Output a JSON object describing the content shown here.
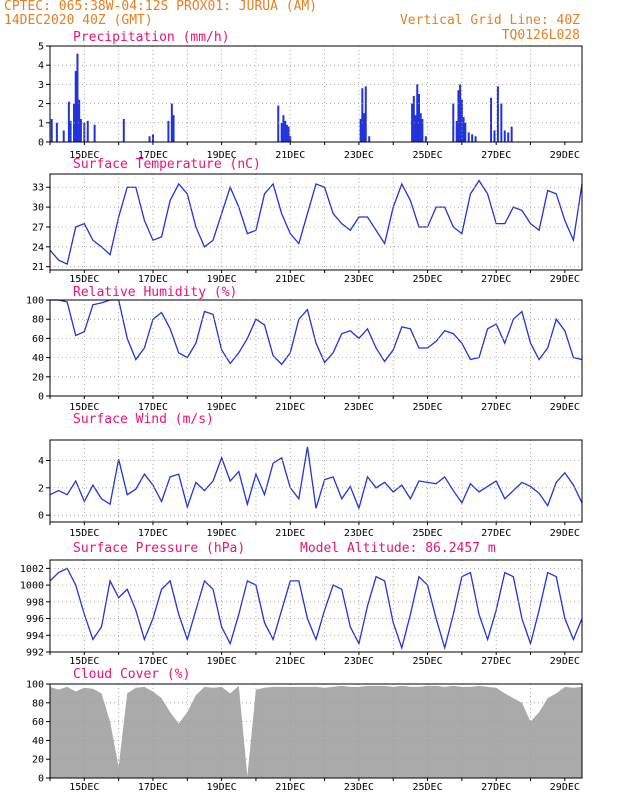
{
  "header": {
    "line1": "CPTEC:  065:38W-04:12S  PROX01: JURUA (AM)",
    "line2_left": "14DEC2020 40Z (GMT)",
    "line2_right": "Vertical Grid Line: 40Z",
    "line3_right": "TQ0126L028"
  },
  "colors": {
    "line": "#2233dd",
    "bars": "#2233dd",
    "cloud": "#aaaaaa",
    "title": "#ee1177",
    "header": "#e67e22"
  },
  "x_dates": [
    "15DEC",
    "17DEC",
    "19DEC",
    "21DEC",
    "23DEC",
    "25DEC",
    "27DEC",
    "29DEC"
  ],
  "chart_data": [
    {
      "type": "bar",
      "title": "Precipitation (mm/h)",
      "xlim": [
        0,
        15.5
      ],
      "ylim": [
        0,
        5
      ],
      "yticks": [
        0,
        1,
        2,
        3,
        4,
        5
      ],
      "x": [
        0.05,
        0.2,
        0.4,
        0.55,
        0.6,
        0.7,
        0.75,
        0.8,
        0.85,
        0.9,
        1.0,
        1.1,
        1.3,
        2.15,
        2.9,
        3.0,
        3.45,
        3.55,
        3.6,
        6.65,
        6.75,
        6.8,
        6.85,
        6.9,
        6.95,
        7.0,
        9.05,
        9.1,
        9.15,
        9.2,
        9.3,
        10.55,
        10.6,
        10.65,
        10.7,
        10.75,
        10.8,
        10.85,
        10.95,
        11.75,
        11.85,
        11.9,
        11.95,
        12.0,
        12.05,
        12.1,
        12.2,
        12.3,
        12.4,
        12.85,
        12.95,
        13.05,
        13.15,
        13.25,
        13.35,
        13.45
      ],
      "values": [
        1.2,
        1.0,
        0.6,
        2.1,
        1.1,
        2.0,
        3.7,
        4.6,
        2.2,
        1.2,
        1.0,
        1.1,
        0.9,
        1.2,
        0.3,
        0.4,
        1.1,
        2.0,
        1.4,
        1.9,
        1.0,
        1.4,
        1.1,
        0.9,
        0.8,
        0.3,
        1.2,
        2.8,
        1.5,
        2.9,
        0.3,
        2.0,
        2.4,
        1.4,
        3.0,
        2.5,
        1.5,
        1.2,
        0.3,
        2.0,
        1.1,
        2.7,
        3.0,
        2.2,
        1.3,
        1.0,
        0.5,
        0.4,
        0.3,
        2.3,
        0.6,
        2.9,
        2.0,
        0.6,
        0.5,
        0.8
      ]
    },
    {
      "type": "line",
      "title": "Surface Temperature (nC)",
      "xlim": [
        0,
        15.5
      ],
      "ylim": [
        20.5,
        35
      ],
      "yticks": [
        21,
        24,
        27,
        30,
        33
      ],
      "x": [
        0,
        0.25,
        0.5,
        0.75,
        1,
        1.25,
        1.5,
        1.75,
        2,
        2.25,
        2.5,
        2.75,
        3,
        3.25,
        3.5,
        3.75,
        4,
        4.25,
        4.5,
        4.75,
        5,
        5.25,
        5.5,
        5.75,
        6,
        6.25,
        6.5,
        6.75,
        7,
        7.25,
        7.5,
        7.75,
        8,
        8.25,
        8.5,
        8.75,
        9,
        9.25,
        9.5,
        9.75,
        10,
        10.25,
        10.5,
        10.75,
        11,
        11.25,
        11.5,
        11.75,
        12,
        12.25,
        12.5,
        12.75,
        13,
        13.25,
        13.5,
        13.75,
        14,
        14.25,
        14.5,
        14.75,
        15,
        15.25,
        15.5
      ],
      "values": [
        23.5,
        22,
        21.4,
        27,
        27.5,
        25,
        24,
        22.8,
        28.5,
        33,
        33,
        28,
        25,
        25.5,
        31,
        33.5,
        32,
        27,
        24,
        25,
        29,
        33,
        30,
        26,
        26.5,
        32,
        33.5,
        29,
        26,
        24.5,
        29,
        33.5,
        33,
        29,
        27.5,
        26.5,
        28.5,
        28.5,
        26.5,
        24.5,
        30,
        33.5,
        31,
        27,
        27,
        30,
        30,
        27,
        26,
        32,
        34,
        32,
        27.5,
        27.5,
        30,
        29.5,
        27.5,
        26.5,
        32.5,
        32,
        28,
        25,
        33.5
      ]
    },
    {
      "type": "line",
      "title": "Relative Humidity (%)",
      "xlim": [
        0,
        15.5
      ],
      "ylim": [
        0,
        100
      ],
      "yticks": [
        0,
        20,
        40,
        60,
        80,
        100
      ],
      "x": [
        0,
        0.25,
        0.5,
        0.75,
        1,
        1.25,
        1.5,
        1.75,
        2,
        2.25,
        2.5,
        2.75,
        3,
        3.25,
        3.5,
        3.75,
        4,
        4.25,
        4.5,
        4.75,
        5,
        5.25,
        5.5,
        5.75,
        6,
        6.25,
        6.5,
        6.75,
        7,
        7.25,
        7.5,
        7.75,
        8,
        8.25,
        8.5,
        8.75,
        9,
        9.25,
        9.5,
        9.75,
        10,
        10.25,
        10.5,
        10.75,
        11,
        11.25,
        11.5,
        11.75,
        12,
        12.25,
        12.5,
        12.75,
        13,
        13.25,
        13.5,
        13.75,
        14,
        14.25,
        14.5,
        14.75,
        15,
        15.25,
        15.5
      ],
      "values": [
        100,
        100,
        98,
        63,
        67,
        95,
        97,
        100,
        100,
        60,
        38,
        50,
        80,
        87,
        70,
        45,
        40,
        55,
        88,
        85,
        48,
        34,
        45,
        60,
        80,
        74,
        42,
        33,
        45,
        80,
        90,
        55,
        35,
        45,
        65,
        68,
        60,
        70,
        50,
        36,
        48,
        72,
        70,
        50,
        50,
        57,
        68,
        65,
        55,
        38,
        40,
        70,
        75,
        55,
        80,
        88,
        55,
        38,
        50,
        80,
        68,
        40,
        38
      ]
    },
    {
      "type": "line",
      "title": "Surface Wind (m/s)",
      "xlim": [
        0,
        15.5
      ],
      "ylim": [
        -0.5,
        5.5
      ],
      "yticks": [
        0,
        2,
        4
      ],
      "x": [
        0,
        0.25,
        0.5,
        0.75,
        1,
        1.25,
        1.5,
        1.75,
        2,
        2.25,
        2.5,
        2.75,
        3,
        3.25,
        3.5,
        3.75,
        4,
        4.25,
        4.5,
        4.75,
        5,
        5.25,
        5.5,
        5.75,
        6,
        6.25,
        6.5,
        6.75,
        7,
        7.25,
        7.5,
        7.75,
        8,
        8.25,
        8.5,
        8.75,
        9,
        9.25,
        9.5,
        9.75,
        10,
        10.25,
        10.5,
        10.75,
        11,
        11.25,
        11.5,
        11.75,
        12,
        12.25,
        12.5,
        12.75,
        13,
        13.25,
        13.5,
        13.75,
        14,
        14.25,
        14.5,
        14.75,
        15,
        15.25,
        15.5
      ],
      "values": [
        1.5,
        1.8,
        1.5,
        2.5,
        1,
        2.2,
        1.2,
        0.8,
        4.1,
        1.5,
        1.9,
        3,
        2.2,
        1,
        2.8,
        3,
        0.6,
        2.4,
        1.8,
        2.5,
        4.2,
        2.5,
        3.2,
        0.8,
        3,
        1.5,
        3.8,
        4.2,
        2,
        1.2,
        5,
        0.5,
        2.6,
        2.8,
        1.2,
        2.1,
        0.5,
        2.8,
        2,
        2.4,
        1.7,
        2.2,
        1.2,
        2.5,
        2.4,
        2.3,
        2.8,
        1.8,
        0.9,
        2.3,
        1.7,
        2.1,
        2.5,
        1.2,
        1.8,
        2.4,
        2.1,
        1.6,
        0.7,
        2.4,
        3.1,
        2.2,
        0.9
      ]
    },
    {
      "type": "line",
      "title": "Surface Pressure (hPa)",
      "annotation": "Model Altitude: 86.2457 m",
      "xlim": [
        0,
        15.5
      ],
      "ylim": [
        992,
        1003
      ],
      "yticks": [
        992,
        994,
        996,
        998,
        1000,
        1002
      ],
      "x": [
        0,
        0.25,
        0.5,
        0.75,
        1,
        1.25,
        1.5,
        1.75,
        2,
        2.25,
        2.5,
        2.75,
        3,
        3.25,
        3.5,
        3.75,
        4,
        4.25,
        4.5,
        4.75,
        5,
        5.25,
        5.5,
        5.75,
        6,
        6.25,
        6.5,
        6.75,
        7,
        7.25,
        7.5,
        7.75,
        8,
        8.25,
        8.5,
        8.75,
        9,
        9.25,
        9.5,
        9.75,
        10,
        10.25,
        10.5,
        10.75,
        11,
        11.25,
        11.5,
        11.75,
        12,
        12.25,
        12.5,
        12.75,
        13,
        13.25,
        13.5,
        13.75,
        14,
        14.25,
        14.5,
        14.75,
        15,
        15.25,
        15.5
      ],
      "values": [
        1000.5,
        1001.5,
        1002,
        1000,
        996.5,
        993.5,
        995,
        1000.5,
        998.5,
        999.5,
        997,
        993.5,
        996,
        999.5,
        1000.5,
        996.5,
        993.5,
        997,
        1000.5,
        999.5,
        995,
        993,
        996.5,
        1000.5,
        1000,
        995.5,
        993.5,
        997,
        1000.5,
        1000.5,
        996,
        993.5,
        997,
        1000,
        999.5,
        995,
        993,
        997.5,
        1001,
        1000.5,
        995.5,
        992.5,
        996.5,
        1001,
        1000,
        996,
        992.5,
        996.5,
        1001,
        1001.5,
        996.5,
        993.5,
        997,
        1001.5,
        1001,
        996,
        993,
        997,
        1001.5,
        1001,
        996,
        993.5,
        996
      ]
    },
    {
      "type": "area",
      "title": "Cloud Cover (%)",
      "xlim": [
        0,
        15.5
      ],
      "ylim": [
        0,
        100
      ],
      "yticks": [
        0,
        20,
        40,
        60,
        80,
        100
      ],
      "x": [
        0,
        0.25,
        0.5,
        0.75,
        1,
        1.25,
        1.5,
        1.75,
        2,
        2.25,
        2.5,
        2.75,
        3,
        3.25,
        3.5,
        3.75,
        4,
        4.25,
        4.5,
        4.75,
        5,
        5.25,
        5.5,
        5.75,
        6,
        6.25,
        6.5,
        6.75,
        7,
        7.25,
        7.5,
        7.75,
        8,
        8.25,
        8.5,
        8.75,
        9,
        9.25,
        9.5,
        9.75,
        10,
        10.25,
        10.5,
        10.75,
        11,
        11.25,
        11.5,
        11.75,
        12,
        12.25,
        12.5,
        12.75,
        13,
        13.25,
        13.5,
        13.75,
        14,
        14.25,
        14.5,
        14.75,
        15,
        15.25,
        15.5
      ],
      "values": [
        97,
        94,
        97,
        92,
        96,
        95,
        90,
        60,
        12,
        90,
        96,
        97,
        92,
        85,
        70,
        58,
        70,
        88,
        97,
        96,
        97,
        90,
        98,
        2,
        94,
        96,
        97,
        97,
        97,
        97,
        97,
        97,
        96,
        97,
        98,
        97,
        97,
        98,
        98,
        98,
        97,
        98,
        97,
        97,
        98,
        98,
        97,
        98,
        97,
        97,
        98,
        97,
        96,
        90,
        85,
        80,
        60,
        70,
        85,
        90,
        97,
        96,
        97
      ]
    }
  ]
}
